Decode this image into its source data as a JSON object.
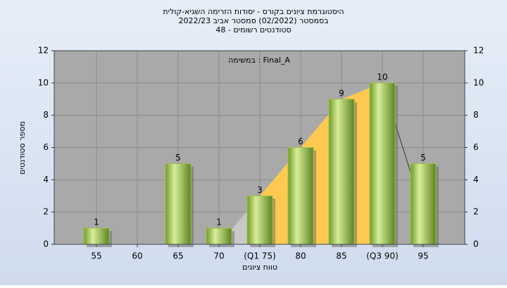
{
  "chart_data": {
    "type": "bar",
    "title_lines": [
      "היסטוגרמת ציונים בקורס - יסודות הזרימה השגיא-קולית",
      "בסמסטר  (02/2022)  סמסטר אביב 2022/23",
      "סטודנטים רשומים - 48"
    ],
    "annotation": "במשימה : Final_A",
    "x_label": "טווח ציונים",
    "y_label": "מספר סטודנטים",
    "categories": [
      "55",
      "60",
      "65",
      "70",
      "(Q1 75)",
      "80",
      "85",
      "(Q3 90)",
      "95"
    ],
    "values": [
      1,
      0,
      5,
      1,
      3,
      6,
      9,
      10,
      5
    ],
    "value_labels": [
      "1",
      null,
      "5",
      "1",
      "3",
      "6",
      "9",
      "10",
      "5"
    ],
    "color": "#9dc24a",
    "area_values": [
      null,
      null,
      null,
      0,
      3,
      6,
      9,
      10,
      2
    ],
    "area_color": "#ffc850",
    "ylim": [
      0,
      12
    ],
    "yticks": [
      0,
      2,
      4,
      6,
      8,
      10,
      12
    ],
    "grid": true
  }
}
